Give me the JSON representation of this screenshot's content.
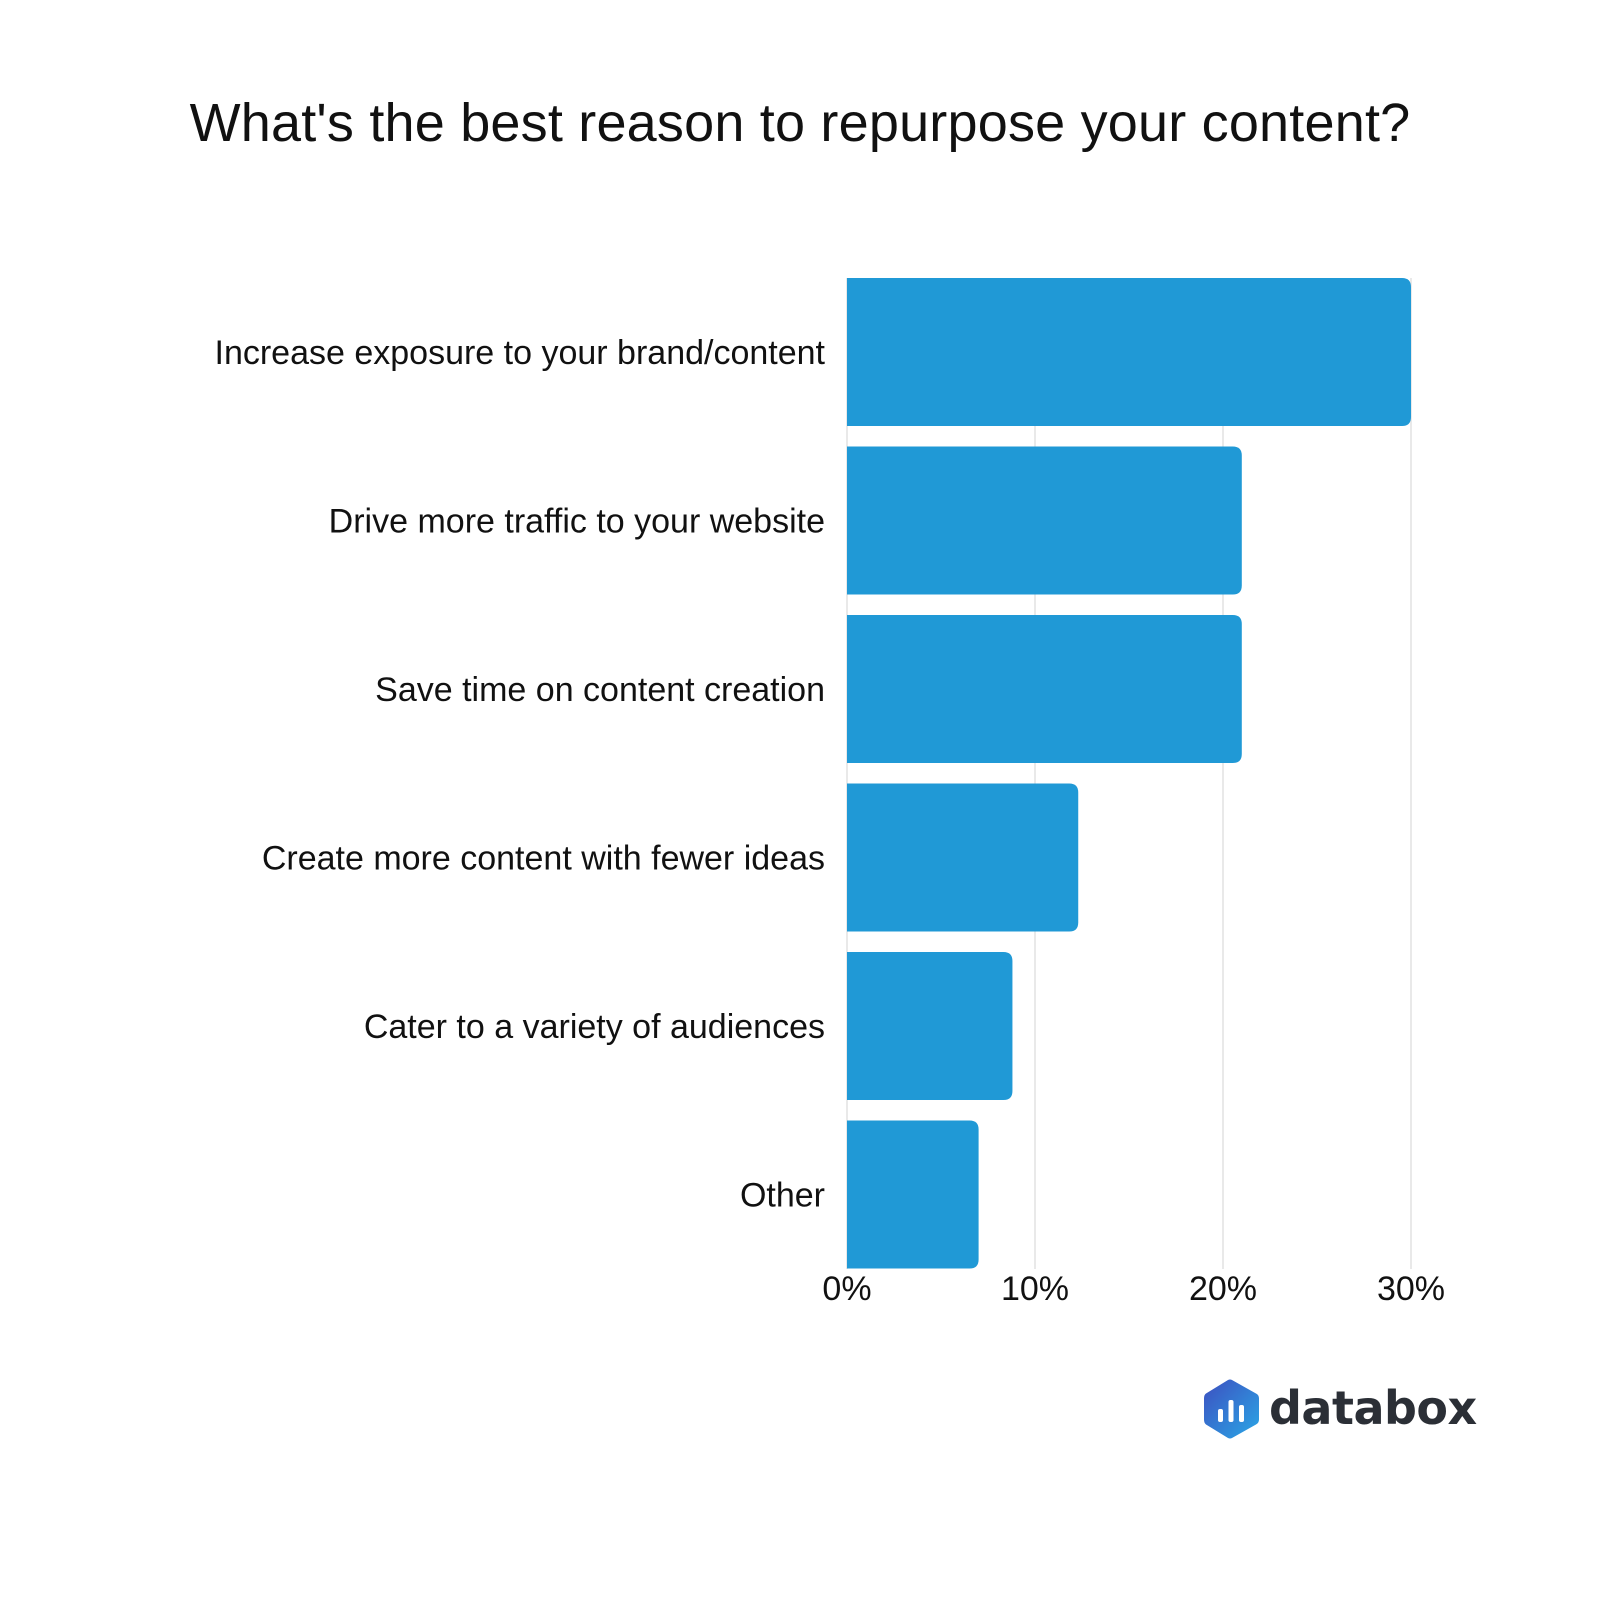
{
  "colors": {
    "bar": "#2099d6",
    "grid": "#e2e2e2",
    "text": "#111111",
    "logo_text": "#2b2f36",
    "logo_gradient_start": "#3d4fc0",
    "logo_gradient_end": "#2aa7e6"
  },
  "chart_data": {
    "type": "bar",
    "orientation": "horizontal",
    "title": "What's the best reason to repurpose your content?",
    "xlabel": "",
    "ylabel": "",
    "categories": [
      "Increase exposure to your brand/content",
      "Drive more traffic to your website",
      "Save time on content creation",
      "Create more content with fewer ideas",
      "Cater to a variety of audiences",
      "Other"
    ],
    "values": [
      30,
      21,
      21,
      12.3,
      8.8,
      7
    ],
    "unit": "%",
    "xlim": [
      0,
      30
    ],
    "x_ticks": [
      "0%",
      "10%",
      "20%",
      "30%"
    ],
    "grid": "vertical"
  },
  "brand": {
    "logo_text": "databox",
    "logo_icon": "databox-hexagon-bars-icon"
  }
}
